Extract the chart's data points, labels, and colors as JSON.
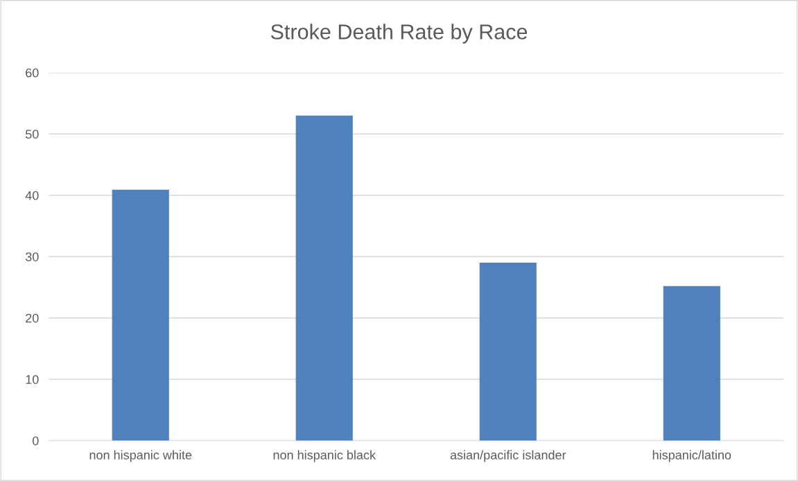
{
  "chart_data": {
    "type": "bar",
    "title": "Stroke Death Rate by Race",
    "categories": [
      "non hispanic white",
      "non hispanic black",
      "asian/pacific islander",
      "hispanic/latino"
    ],
    "values": [
      40.9,
      53,
      29,
      25.2
    ],
    "color": "#4f81bd",
    "ylim": [
      0,
      60
    ],
    "yticks": [
      0,
      10,
      20,
      30,
      40,
      50,
      60
    ],
    "grid": "y",
    "legend": false
  }
}
